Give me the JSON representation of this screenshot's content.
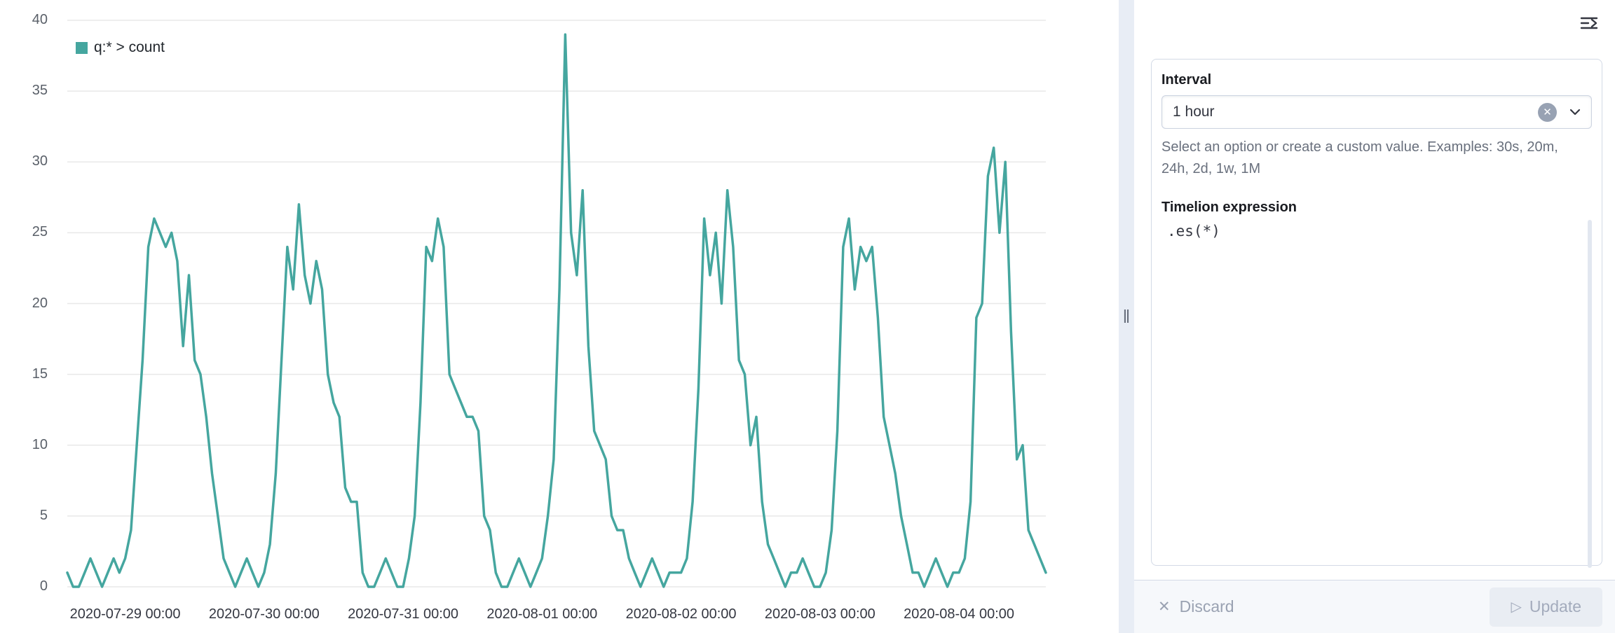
{
  "chart_data": {
    "type": "line",
    "title": "",
    "xlabel": "",
    "ylabel": "",
    "ylim": [
      0,
      40
    ],
    "ytick_step": 5,
    "grid": true,
    "grid_color": "#e8e8e8",
    "legend_position": "top-left",
    "x_start": "2020-07-28 14:00",
    "x_interval": "1 hour",
    "xticks": [
      {
        "index": 10,
        "label": "2020-07-29 00:00"
      },
      {
        "index": 34,
        "label": "2020-07-30 00:00"
      },
      {
        "index": 58,
        "label": "2020-07-31 00:00"
      },
      {
        "index": 82,
        "label": "2020-08-01 00:00"
      },
      {
        "index": 106,
        "label": "2020-08-02 00:00"
      },
      {
        "index": 130,
        "label": "2020-08-03 00:00"
      },
      {
        "index": 154,
        "label": "2020-08-04 00:00"
      }
    ],
    "series": [
      {
        "name": "q:* > count",
        "color": "#45a69f",
        "values": [
          1,
          0,
          0,
          1,
          2,
          1,
          0,
          1,
          2,
          1,
          2,
          4,
          10,
          16,
          24,
          26,
          25,
          24,
          25,
          23,
          17,
          22,
          16,
          15,
          12,
          8,
          5,
          2,
          1,
          0,
          1,
          2,
          1,
          0,
          1,
          3,
          8,
          16,
          24,
          21,
          27,
          22,
          20,
          23,
          21,
          15,
          13,
          12,
          7,
          6,
          6,
          1,
          0,
          0,
          1,
          2,
          1,
          0,
          0,
          2,
          5,
          13,
          24,
          23,
          26,
          24,
          15,
          14,
          13,
          12,
          12,
          11,
          5,
          4,
          1,
          0,
          0,
          1,
          2,
          1,
          0,
          1,
          2,
          5,
          9,
          21,
          39,
          25,
          22,
          28,
          17,
          11,
          10,
          9,
          5,
          4,
          4,
          2,
          1,
          0,
          1,
          2,
          1,
          0,
          1,
          1,
          1,
          2,
          6,
          14,
          26,
          22,
          25,
          20,
          28,
          24,
          16,
          15,
          10,
          12,
          6,
          3,
          2,
          1,
          0,
          1,
          1,
          2,
          1,
          0,
          0,
          1,
          4,
          11,
          24,
          26,
          21,
          24,
          23,
          24,
          19,
          12,
          10,
          8,
          5,
          3,
          1,
          1,
          0,
          1,
          2,
          1,
          0,
          1,
          1,
          2,
          6,
          19,
          20,
          29,
          31,
          25,
          30,
          18,
          9,
          10,
          4,
          3,
          2,
          1
        ]
      }
    ]
  },
  "panel": {
    "interval": {
      "label": "Interval",
      "value": "1 hour",
      "clear_icon": "x",
      "chevron_icon": "chevron-down",
      "help": "Select an option or create a custom value. Examples: 30s, 20m,\n24h, 2d, 1w, 1M"
    },
    "expression": {
      "label": "Timelion expression",
      "value": ".es(*)"
    },
    "resize_handle_glyph": "‖"
  },
  "footer": {
    "discard_label": "Discard",
    "discard_icon": "✕",
    "update_label": "Update",
    "update_icon": "▷"
  }
}
